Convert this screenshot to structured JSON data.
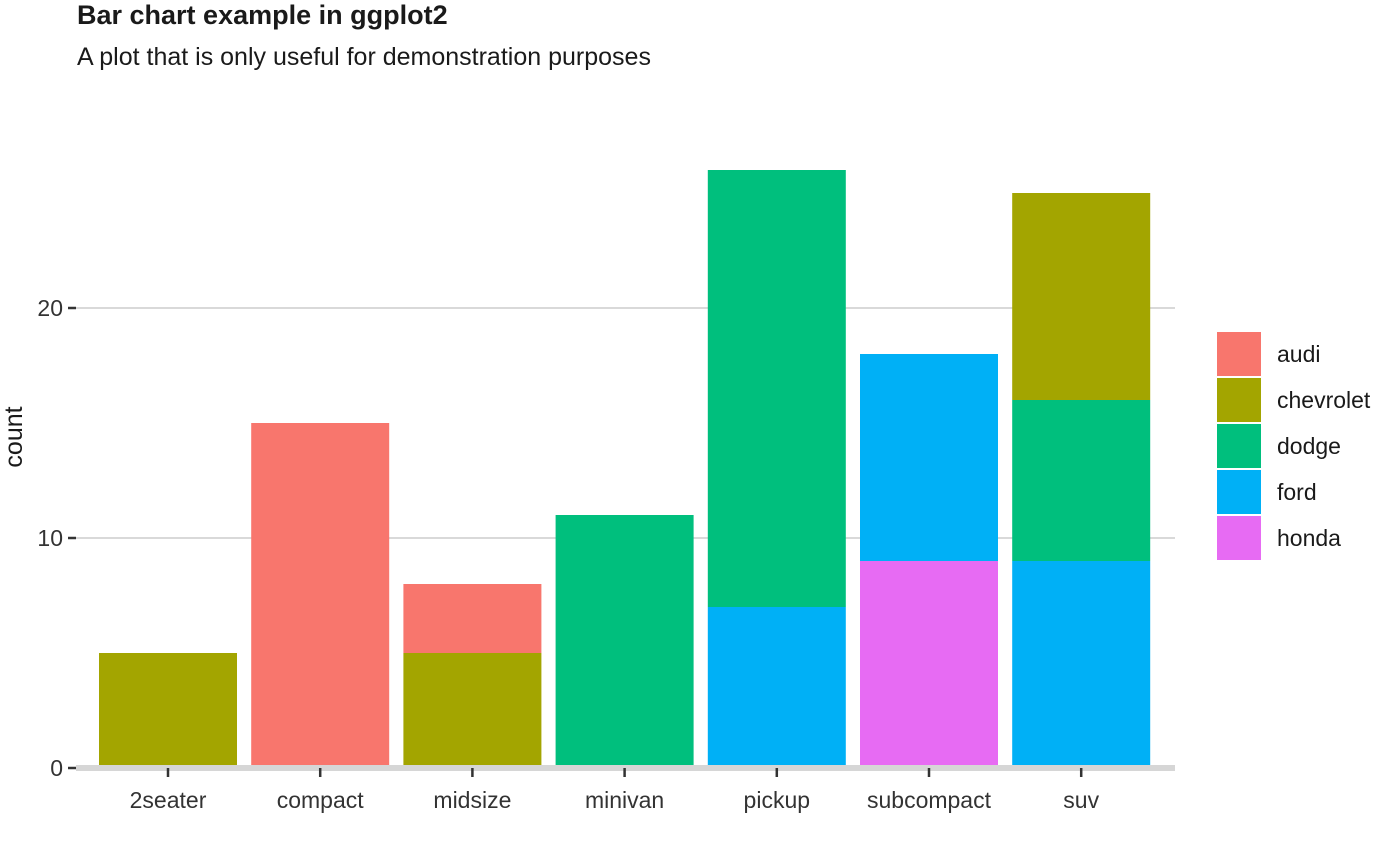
{
  "chart_data": {
    "type": "bar",
    "stacked": true,
    "title": "Bar chart example in ggplot2",
    "subtitle": "A plot that is only useful for demonstration purposes",
    "xlabel": "",
    "ylabel": "count",
    "ylim": [
      0,
      27
    ],
    "y_ticks": [
      0,
      10,
      20
    ],
    "grid": true,
    "legend_position": "right",
    "categories": [
      "2seater",
      "compact",
      "midsize",
      "minivan",
      "pickup",
      "subcompact",
      "suv"
    ],
    "series": [
      {
        "name": "audi",
        "color": "#F8766D",
        "values": [
          0,
          15,
          3,
          0,
          0,
          0,
          0
        ]
      },
      {
        "name": "chevrolet",
        "color": "#A3A500",
        "values": [
          5,
          0,
          5,
          0,
          0,
          0,
          9
        ]
      },
      {
        "name": "dodge",
        "color": "#00BF7D",
        "values": [
          0,
          0,
          0,
          11,
          19,
          0,
          7
        ]
      },
      {
        "name": "ford",
        "color": "#00B0F6",
        "values": [
          0,
          0,
          0,
          0,
          7,
          9,
          9
        ]
      },
      {
        "name": "honda",
        "color": "#E76BF3",
        "values": [
          0,
          0,
          0,
          0,
          0,
          9,
          0
        ]
      }
    ]
  }
}
